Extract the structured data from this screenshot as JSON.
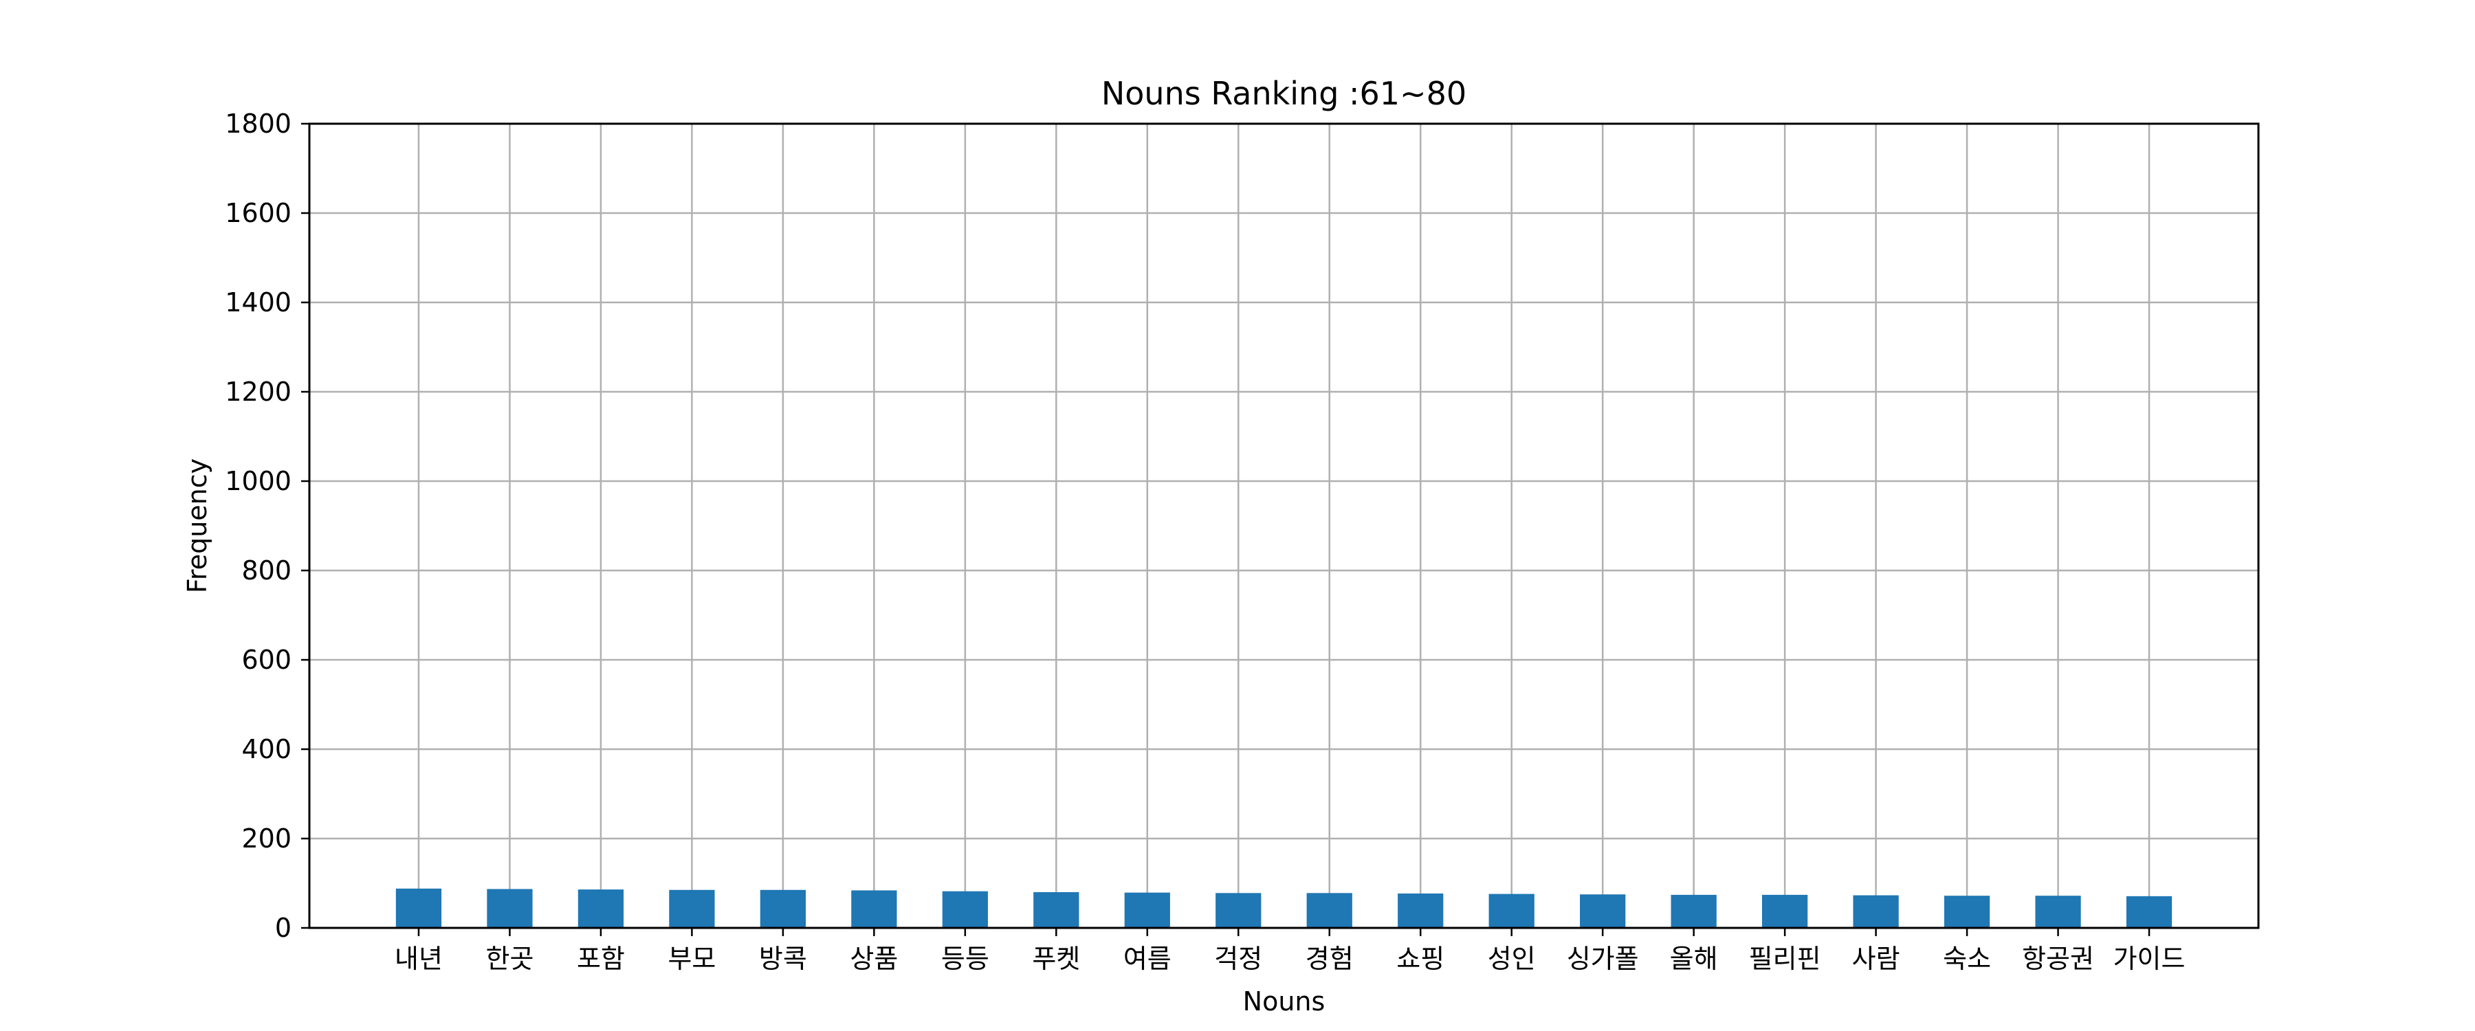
{
  "chart_data": {
    "type": "bar",
    "title": "Nouns Ranking :61~80",
    "xlabel": "Nouns",
    "ylabel": "Frequency",
    "categories": [
      "내년",
      "한곳",
      "포함",
      "부모",
      "방콕",
      "상품",
      "등등",
      "푸켓",
      "여름",
      "걱정",
      "경험",
      "쇼핑",
      "성인",
      "싱가폴",
      "올해",
      "필리핀",
      "사람",
      "숙소",
      "항공권",
      "가이드"
    ],
    "values": [
      88,
      87,
      86,
      85,
      85,
      84,
      82,
      80,
      79,
      78,
      78,
      77,
      76,
      75,
      74,
      74,
      73,
      72,
      72,
      71
    ],
    "ylim": [
      0,
      1800
    ],
    "yticks": [
      0,
      200,
      400,
      600,
      800,
      1000,
      1200,
      1400,
      1600,
      1800
    ],
    "grid": true,
    "bar_color": "#1f77b4",
    "grid_color": "#b0b0b0"
  }
}
